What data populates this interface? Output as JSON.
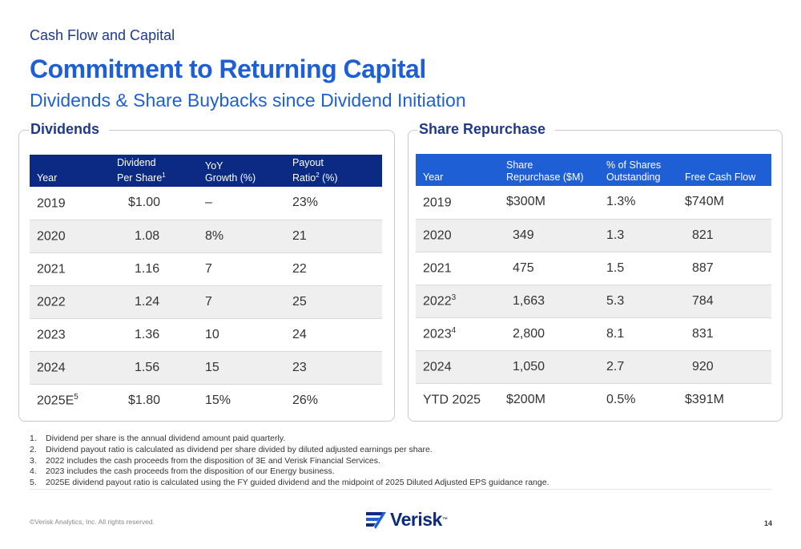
{
  "header": {
    "section": "Cash Flow and Capital",
    "title": "Commitment to Returning Capital",
    "subtitle": "Dividends & Share Buybacks since Dividend Initiation"
  },
  "dividends": {
    "title": "Dividends",
    "columns": [
      "Year",
      "Dividend",
      "Per Share",
      "1",
      "YoY",
      "Growth (%)",
      "Payout",
      "Ratio",
      "2",
      " (%)"
    ],
    "rows": [
      {
        "year": "2019",
        "sup": "",
        "dps": "$1.00",
        "yoy": "–",
        "payout": "23%"
      },
      {
        "year": "2020",
        "sup": "",
        "dps": "1.08",
        "yoy": "8%",
        "payout": "21"
      },
      {
        "year": "2021",
        "sup": "",
        "dps": "1.16",
        "yoy": "7",
        "payout": "22"
      },
      {
        "year": "2022",
        "sup": "",
        "dps": "1.24",
        "yoy": "7",
        "payout": "25"
      },
      {
        "year": "2023",
        "sup": "",
        "dps": "1.36",
        "yoy": "10",
        "payout": "24"
      },
      {
        "year": "2024",
        "sup": "",
        "dps": "1.56",
        "yoy": "15",
        "payout": "23"
      },
      {
        "year": "2025E",
        "sup": "5",
        "dps": "$1.80",
        "yoy": "15%",
        "payout": "26%"
      }
    ]
  },
  "repurchase": {
    "title": "Share Repurchase",
    "columns": [
      "Year",
      "Share",
      "Repurchase ($M)",
      "% of Shares",
      "Outstanding",
      "Free Cash Flow"
    ],
    "rows": [
      {
        "year": "2019",
        "sup": "",
        "share": "$300M",
        "pct": "1.3%",
        "fcf": "$740M"
      },
      {
        "year": "2020",
        "sup": "",
        "share": "349",
        "pct": "1.3",
        "fcf": "821"
      },
      {
        "year": "2021",
        "sup": "",
        "share": "475",
        "pct": "1.5",
        "fcf": "887"
      },
      {
        "year": "2022",
        "sup": "3",
        "share": "1,663",
        "pct": "5.3",
        "fcf": "784"
      },
      {
        "year": "2023",
        "sup": "4",
        "share": "2,800",
        "pct": "8.1",
        "fcf": "831"
      },
      {
        "year": "2024",
        "sup": "",
        "share": "1,050",
        "pct": "2.7",
        "fcf": "920"
      },
      {
        "year": "YTD 2025",
        "sup": "",
        "share": "$200M",
        "pct": "0.5%",
        "fcf": "$391M"
      }
    ]
  },
  "footnotes": [
    {
      "num": "1.",
      "text": "Dividend per share is the annual dividend amount paid quarterly."
    },
    {
      "num": "2.",
      "text": "Dividend payout ratio is calculated as dividend per share divided by diluted adjusted earnings per share."
    },
    {
      "num": "3.",
      "text": "2022 includes the cash proceeds from the disposition of 3E and Verisk Financial Services."
    },
    {
      "num": "4.",
      "text": "2023 includes the cash proceeds from the disposition of our Energy business."
    },
    {
      "num": "5.",
      "text": "2025E dividend payout ratio is calculated using the FY guided dividend and the midpoint of 2025 Diluted Adjusted EPS guidance range."
    }
  ],
  "footer": {
    "copyright": "©Verisk Analytics, Inc. All rights reserved.",
    "logo_text": "Verisk",
    "logo_tm": "™",
    "page_number": "14"
  },
  "colors": {
    "title_blue": "#1f5fd6",
    "navy": "#0b2a84",
    "repurchase_header": "#1f5fd6"
  }
}
